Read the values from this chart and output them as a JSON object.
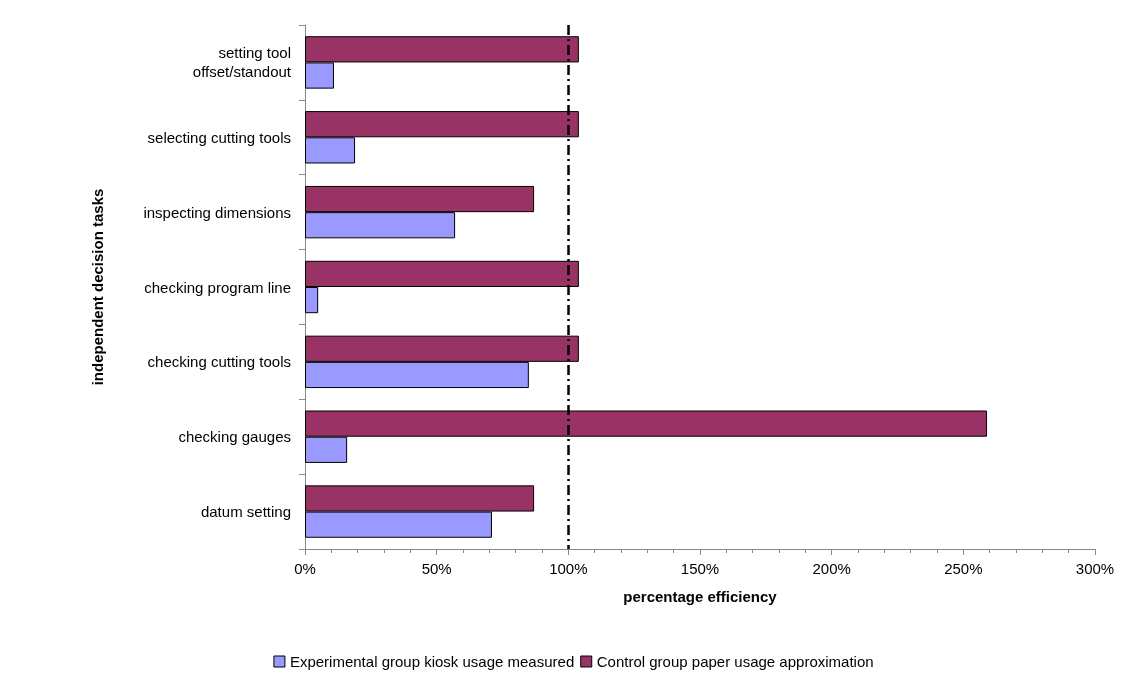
{
  "chart_data": {
    "type": "bar",
    "orientation": "horizontal",
    "xlabel": "percentage efficiency",
    "ylabel": "independent decision tasks",
    "categories": [
      "setting tool\noffset/standout",
      "selecting cutting tools",
      "inspecting dimensions",
      "checking program line",
      "checking cutting tools",
      "checking gauges",
      "datum setting"
    ],
    "series": [
      {
        "name": "Experimental group kiosk usage measured",
        "color": "#9999ff",
        "values": [
          11,
          19,
          57,
          5,
          85,
          16,
          71
        ]
      },
      {
        "name": "Control group paper usage approximation",
        "color": "#993366",
        "values": [
          104,
          104,
          87,
          104,
          104,
          259,
          87
        ]
      }
    ],
    "xlim": [
      0,
      300
    ],
    "xticks": [
      {
        "value": 0,
        "label": "0%"
      },
      {
        "value": 50,
        "label": "50%"
      },
      {
        "value": 100,
        "label": "100%"
      },
      {
        "value": 150,
        "label": "150%"
      },
      {
        "value": 200,
        "label": "200%"
      },
      {
        "value": 250,
        "label": "250%"
      },
      {
        "value": 300,
        "label": "300%"
      }
    ],
    "ref_lines": [
      {
        "axis": "x",
        "value": 100,
        "color": "#000000",
        "line_style": "dashdot"
      }
    ],
    "grid": false,
    "legend": "bottom"
  }
}
